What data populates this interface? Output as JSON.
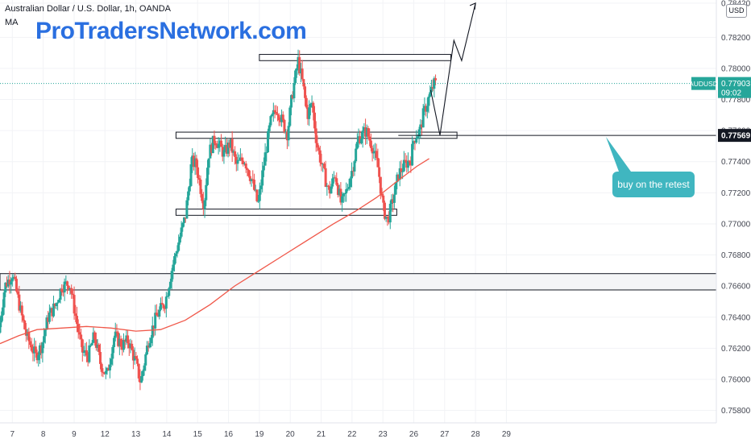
{
  "header": {
    "symbol_title": "Australian Dollar / U.S. Dollar, 1h, OANDA",
    "indicator": "MA"
  },
  "watermark": "ProTradersNetwork.com",
  "currency_button": "USD",
  "annotation": {
    "text": "buy on the retest"
  },
  "price_tags": {
    "symbol": "AUDUSD",
    "last_price": "0.77903",
    "countdown": "09:02",
    "level_price": "0.77569"
  },
  "colors": {
    "up": "#26a69a",
    "down": "#ef5350",
    "ma": "#f0584a",
    "callout": "#40b6c0",
    "watermark": "#2a6fe0",
    "last_price_line": "#26a69a"
  },
  "chart_data": {
    "type": "candlestick",
    "instrument": "AUDUSD",
    "timeframe": "1h",
    "ylim": [
      0.7572,
      0.7844
    ],
    "yticks": [
      "0.78420",
      "0.78200",
      "0.78000",
      "0.77800",
      "0.77600",
      "0.77400",
      "0.77200",
      "0.77000",
      "0.76800",
      "0.76600",
      "0.76400",
      "0.76200",
      "0.76000",
      "0.75800"
    ],
    "xlim": [
      6.6,
      29.8
    ],
    "xticks": [
      {
        "label": "7",
        "x": 7
      },
      {
        "label": "8",
        "x": 8
      },
      {
        "label": "9",
        "x": 9
      },
      {
        "label": "12",
        "x": 10
      },
      {
        "label": "13",
        "x": 11
      },
      {
        "label": "14",
        "x": 12
      },
      {
        "label": "15",
        "x": 13
      },
      {
        "label": "16",
        "x": 14
      },
      {
        "label": "19",
        "x": 15
      },
      {
        "label": "20",
        "x": 16
      },
      {
        "label": "21",
        "x": 17
      },
      {
        "label": "22",
        "x": 18
      },
      {
        "label": "23",
        "x": 19
      },
      {
        "label": "26",
        "x": 20
      },
      {
        "label": "27",
        "x": 21
      },
      {
        "label": "28",
        "x": 22
      },
      {
        "label": "29",
        "x": 23
      }
    ],
    "price_path": [
      [
        6.6,
        0.763
      ],
      [
        6.8,
        0.766
      ],
      [
        7.05,
        0.7668
      ],
      [
        7.3,
        0.7645
      ],
      [
        7.5,
        0.7628
      ],
      [
        7.8,
        0.7615
      ],
      [
        8.0,
        0.7622
      ],
      [
        8.2,
        0.764
      ],
      [
        8.45,
        0.7648
      ],
      [
        8.65,
        0.766
      ],
      [
        8.9,
        0.7662
      ],
      [
        9.1,
        0.764
      ],
      [
        9.3,
        0.7618
      ],
      [
        9.5,
        0.7615
      ],
      [
        9.7,
        0.7628
      ],
      [
        9.9,
        0.761
      ],
      [
        10.1,
        0.7602
      ],
      [
        10.35,
        0.7628
      ],
      [
        10.6,
        0.7622
      ],
      [
        10.8,
        0.7625
      ],
      [
        11.05,
        0.761
      ],
      [
        11.2,
        0.7598
      ],
      [
        11.45,
        0.7625
      ],
      [
        11.7,
        0.764
      ],
      [
        12.0,
        0.765
      ],
      [
        12.2,
        0.767
      ],
      [
        12.45,
        0.769
      ],
      [
        12.65,
        0.7705
      ],
      [
        12.85,
        0.774
      ],
      [
        13.0,
        0.7738
      ],
      [
        13.15,
        0.7722
      ],
      [
        13.25,
        0.7712
      ],
      [
        13.4,
        0.7745
      ],
      [
        13.6,
        0.7755
      ],
      [
        13.9,
        0.7745
      ],
      [
        14.1,
        0.7752
      ],
      [
        14.3,
        0.7738
      ],
      [
        14.55,
        0.7742
      ],
      [
        14.8,
        0.7728
      ],
      [
        15.0,
        0.7712
      ],
      [
        15.2,
        0.774
      ],
      [
        15.4,
        0.7765
      ],
      [
        15.6,
        0.7775
      ],
      [
        15.8,
        0.7765
      ],
      [
        15.95,
        0.7758
      ],
      [
        16.1,
        0.7782
      ],
      [
        16.3,
        0.7805
      ],
      [
        16.45,
        0.779
      ],
      [
        16.6,
        0.777
      ],
      [
        16.75,
        0.7778
      ],
      [
        16.9,
        0.7752
      ],
      [
        17.1,
        0.7735
      ],
      [
        17.3,
        0.772
      ],
      [
        17.5,
        0.7732
      ],
      [
        17.7,
        0.7712
      ],
      [
        17.85,
        0.772
      ],
      [
        18.05,
        0.7735
      ],
      [
        18.25,
        0.7755
      ],
      [
        18.5,
        0.776
      ],
      [
        18.7,
        0.775
      ],
      [
        18.9,
        0.7735
      ],
      [
        19.05,
        0.771
      ],
      [
        19.2,
        0.7702
      ],
      [
        19.4,
        0.7718
      ],
      [
        19.55,
        0.7732
      ],
      [
        19.75,
        0.7738
      ],
      [
        19.95,
        0.7742
      ],
      [
        20.05,
        0.7755
      ],
      [
        20.25,
        0.776
      ],
      [
        20.35,
        0.777
      ],
      [
        20.55,
        0.7782
      ],
      [
        20.7,
        0.779
      ]
    ],
    "ma_path": [
      [
        6.6,
        0.7623
      ],
      [
        7.2,
        0.7628
      ],
      [
        7.8,
        0.7632
      ],
      [
        8.6,
        0.7633
      ],
      [
        9.4,
        0.7634
      ],
      [
        10.2,
        0.7633
      ],
      [
        11.0,
        0.7631
      ],
      [
        11.8,
        0.7632
      ],
      [
        12.6,
        0.7638
      ],
      [
        13.4,
        0.7648
      ],
      [
        14.2,
        0.766
      ],
      [
        15.0,
        0.767
      ],
      [
        15.8,
        0.768
      ],
      [
        16.6,
        0.769
      ],
      [
        17.4,
        0.77
      ],
      [
        18.1,
        0.7708
      ],
      [
        18.8,
        0.7717
      ],
      [
        19.5,
        0.7728
      ],
      [
        20.1,
        0.7737
      ],
      [
        20.5,
        0.7742
      ]
    ],
    "zones": [
      {
        "x1": 15.0,
        "x2": 21.2,
        "y1": 0.7805,
        "y2": 0.7809
      },
      {
        "x1": 12.3,
        "x2": 21.4,
        "y1": 0.7755,
        "y2": 0.7759
      },
      {
        "x1": 12.3,
        "x2": 19.45,
        "y1": 0.77055,
        "y2": 0.77095
      },
      {
        "x1": 6.6,
        "x2": 29.8,
        "y1": 0.76575,
        "y2": 0.7668
      }
    ],
    "level_line": 0.77569,
    "last_price": 0.77903,
    "projection": [
      [
        20.55,
        0.7786
      ],
      [
        20.85,
        0.7757
      ],
      [
        21.3,
        0.7818
      ],
      [
        21.55,
        0.7805
      ],
      [
        22.0,
        0.7842
      ]
    ]
  }
}
